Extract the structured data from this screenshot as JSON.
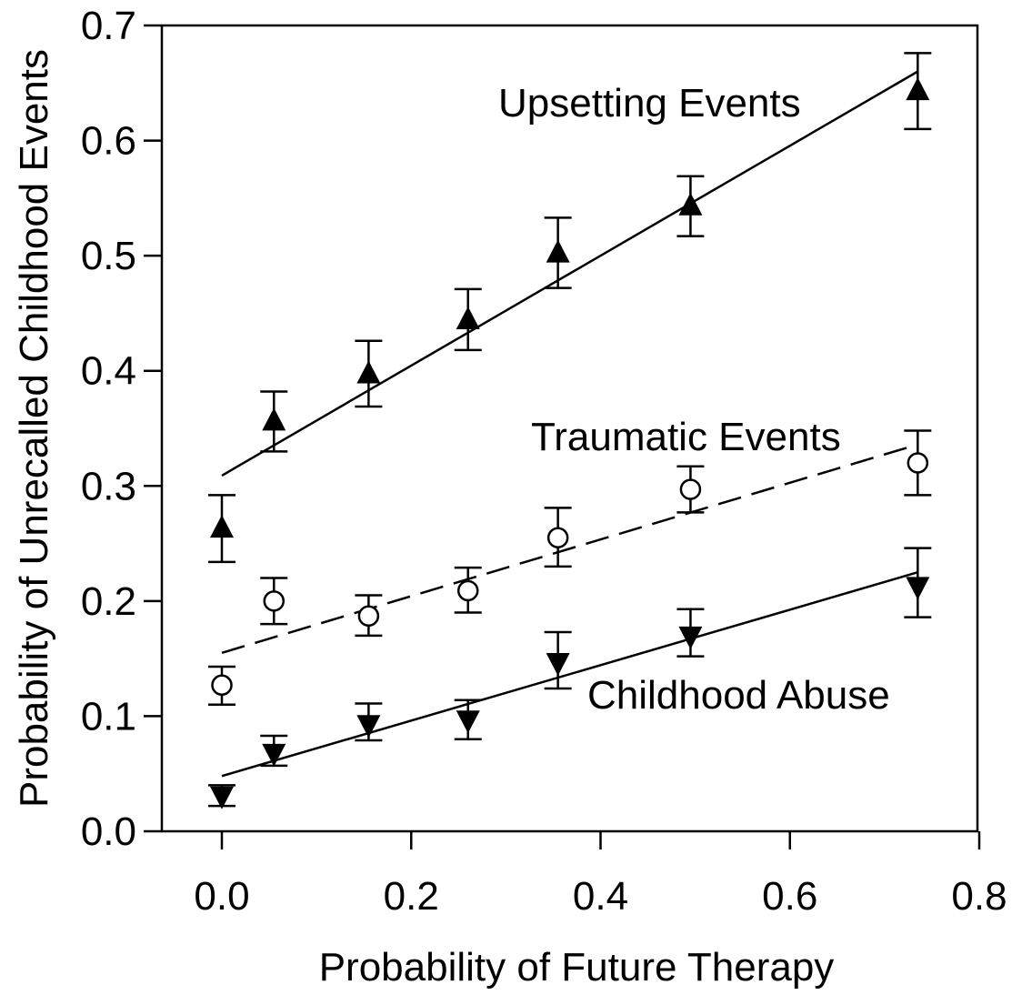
{
  "chart_data": {
    "type": "scatter",
    "title": "",
    "xlabel": "Probability of Future Therapy",
    "ylabel": "Probability of Unrecalled Childhood Events",
    "xlim": [
      -0.05,
      0.8
    ],
    "ylim": [
      0.0,
      0.7
    ],
    "xticks": [
      "0.0",
      "0.2",
      "0.4",
      "0.6",
      "0.8"
    ],
    "yticks": [
      "0.0",
      "0.1",
      "0.2",
      "0.3",
      "0.4",
      "0.5",
      "0.6",
      "0.7"
    ],
    "grid": false,
    "series": [
      {
        "name": "Upsetting Events",
        "marker": "triangle-up",
        "x": [
          0.0,
          0.055,
          0.155,
          0.26,
          0.355,
          0.495,
          0.735
        ],
        "y": [
          0.263,
          0.356,
          0.397,
          0.444,
          0.502,
          0.543,
          0.643
        ],
        "err_low": [
          0.234,
          0.33,
          0.369,
          0.418,
          0.472,
          0.517,
          0.61
        ],
        "err_high": [
          0.292,
          0.382,
          0.426,
          0.471,
          0.533,
          0.569,
          0.676
        ],
        "fit": {
          "x": [
            0.0,
            0.735
          ],
          "y": [
            0.309,
            0.66
          ],
          "style": "solid"
        }
      },
      {
        "name": "Traumatic Events",
        "marker": "circle-open",
        "x": [
          0.0,
          0.055,
          0.155,
          0.26,
          0.355,
          0.495,
          0.735
        ],
        "y": [
          0.127,
          0.2,
          0.187,
          0.209,
          0.255,
          0.297,
          0.32
        ],
        "err_low": [
          0.11,
          0.18,
          0.17,
          0.19,
          0.23,
          0.277,
          0.292
        ],
        "err_high": [
          0.143,
          0.22,
          0.205,
          0.229,
          0.281,
          0.317,
          0.348
        ],
        "fit": {
          "x": [
            0.0,
            0.735
          ],
          "y": [
            0.155,
            0.336
          ],
          "style": "dashed"
        }
      },
      {
        "name": "Childhood Abuse",
        "marker": "triangle-down",
        "x": [
          0.0,
          0.055,
          0.155,
          0.26,
          0.355,
          0.495,
          0.735
        ],
        "y": [
          0.031,
          0.068,
          0.093,
          0.097,
          0.147,
          0.17,
          0.213
        ],
        "err_low": [
          0.022,
          0.057,
          0.079,
          0.08,
          0.124,
          0.152,
          0.186
        ],
        "err_high": [
          0.04,
          0.083,
          0.111,
          0.114,
          0.173,
          0.193,
          0.246
        ],
        "fit": {
          "x": [
            0.0,
            0.735
          ],
          "y": [
            0.048,
            0.225
          ],
          "style": "solid"
        }
      }
    ]
  }
}
